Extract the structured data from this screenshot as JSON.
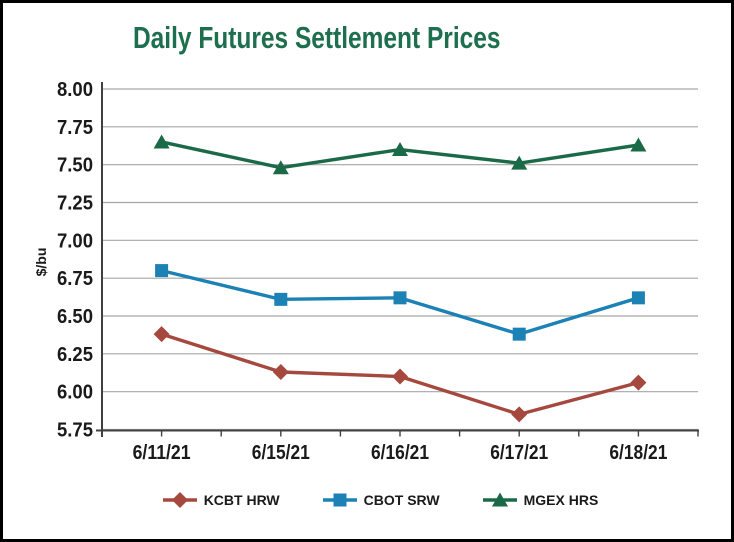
{
  "chart_data": {
    "type": "line",
    "title": "Daily Futures Settlement Prices",
    "ylabel": "$/bu",
    "xlabel": "",
    "categories": [
      "6/11/21",
      "6/15/21",
      "6/16/21",
      "6/17/21",
      "6/18/21"
    ],
    "series": [
      {
        "name": "KCBT HRW",
        "marker": "diamond",
        "color": "#A5483E",
        "values": [
          6.38,
          6.13,
          6.1,
          5.85,
          6.06
        ]
      },
      {
        "name": "CBOT SRW",
        "marker": "square",
        "color": "#1C81B4",
        "values": [
          6.8,
          6.61,
          6.62,
          6.38,
          6.62
        ]
      },
      {
        "name": "MGEX HRS",
        "marker": "triangle",
        "color": "#1B6A47",
        "values": [
          7.65,
          7.48,
          7.6,
          7.51,
          7.63
        ]
      }
    ],
    "ylim": [
      5.75,
      8.0
    ],
    "ytick_step": 0.25,
    "yticks": [
      "8.00",
      "7.75",
      "7.50",
      "7.25",
      "7.00",
      "6.75",
      "6.50",
      "6.25",
      "6.00",
      "5.75"
    ],
    "grid": true,
    "legend_position": "bottom",
    "styles": {
      "title_color": "#1D6F4E",
      "grid_color": "#A6A6A6",
      "axis_color": "#404040",
      "tick_label_color": "#1A1A1A"
    }
  }
}
